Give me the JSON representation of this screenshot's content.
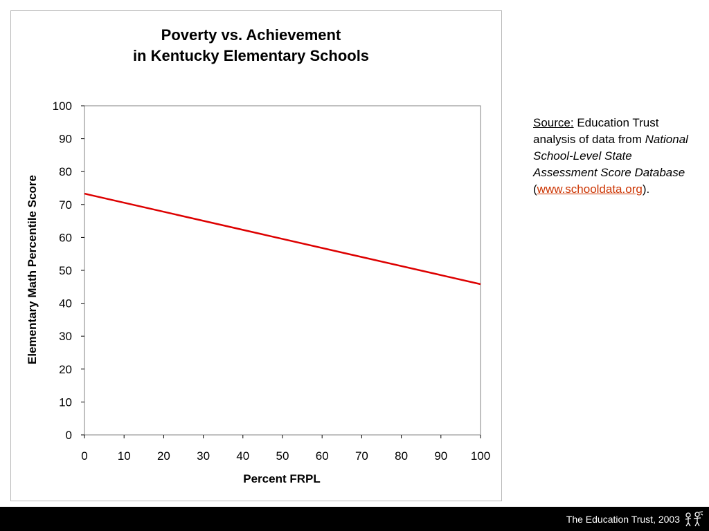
{
  "chart_data": {
    "type": "line",
    "title": [
      "Poverty vs. Achievement",
      "in Kentucky Elementary Schools"
    ],
    "xlabel": "Percent FRPL",
    "ylabel": "Elementary Math Percentile Score",
    "xlim": [
      0,
      100
    ],
    "ylim": [
      0,
      100
    ],
    "x_ticks": [
      0,
      10,
      20,
      30,
      40,
      50,
      60,
      70,
      80,
      90,
      100
    ],
    "y_ticks": [
      0,
      10,
      20,
      30,
      40,
      50,
      60,
      70,
      80,
      90,
      100
    ],
    "grid": false,
    "series": [
      {
        "x": [
          0,
          100
        ],
        "y": [
          73.3,
          45.8
        ],
        "color": "#dd0000"
      }
    ]
  },
  "source": {
    "label": "Source:",
    "text1": " Education Trust analysis of data from ",
    "italic": "National School-Level State Assessment Score Database",
    "open": " (",
    "link": "www.schooldata.org",
    "close": ")."
  },
  "footer": {
    "text": "The Education Trust, 2003",
    "logo_icon": "education-trust-logo-icon"
  },
  "colors": {
    "line": "#dd0000",
    "footer_bg": "#000000",
    "link": "#cc3300"
  }
}
